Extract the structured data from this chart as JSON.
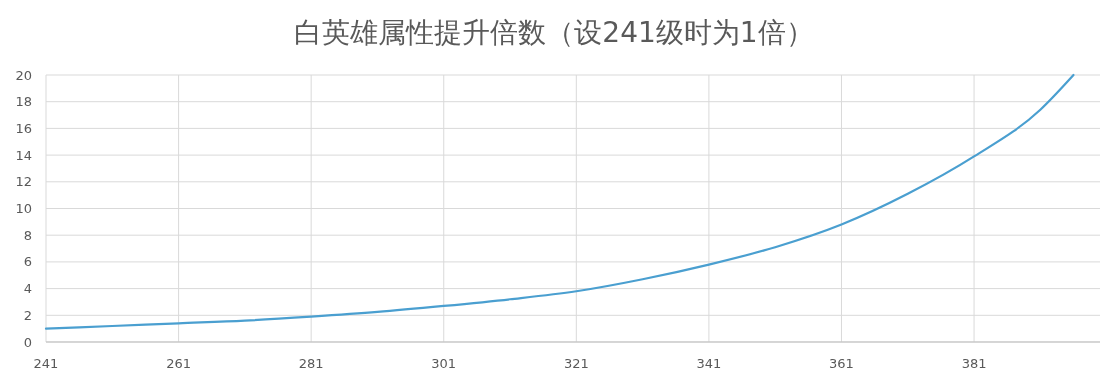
{
  "chart_data": {
    "type": "line",
    "title": "白英雄属性提升倍数（设241级时为1倍）",
    "x": [
      241,
      251,
      261,
      271,
      281,
      291,
      301,
      311,
      321,
      331,
      341,
      351,
      361,
      371,
      381,
      391,
      396
    ],
    "series": [
      {
        "color": "#4a9fd0",
        "values": [
          1.0,
          1.2,
          1.4,
          1.6,
          1.9,
          2.25,
          2.7,
          3.2,
          3.8,
          4.7,
          5.8,
          7.1,
          8.8,
          11.1,
          13.9,
          17.4,
          20
        ]
      }
    ],
    "xlim": [
      241,
      400
    ],
    "xticks": [
      241,
      261,
      281,
      301,
      321,
      341,
      361,
      381
    ],
    "ylim": [
      0,
      20
    ],
    "yticks": [
      0,
      2,
      4,
      6,
      8,
      10,
      12,
      14,
      16,
      18,
      20
    ],
    "grid": true,
    "marker": "none",
    "line_style": "solid"
  }
}
